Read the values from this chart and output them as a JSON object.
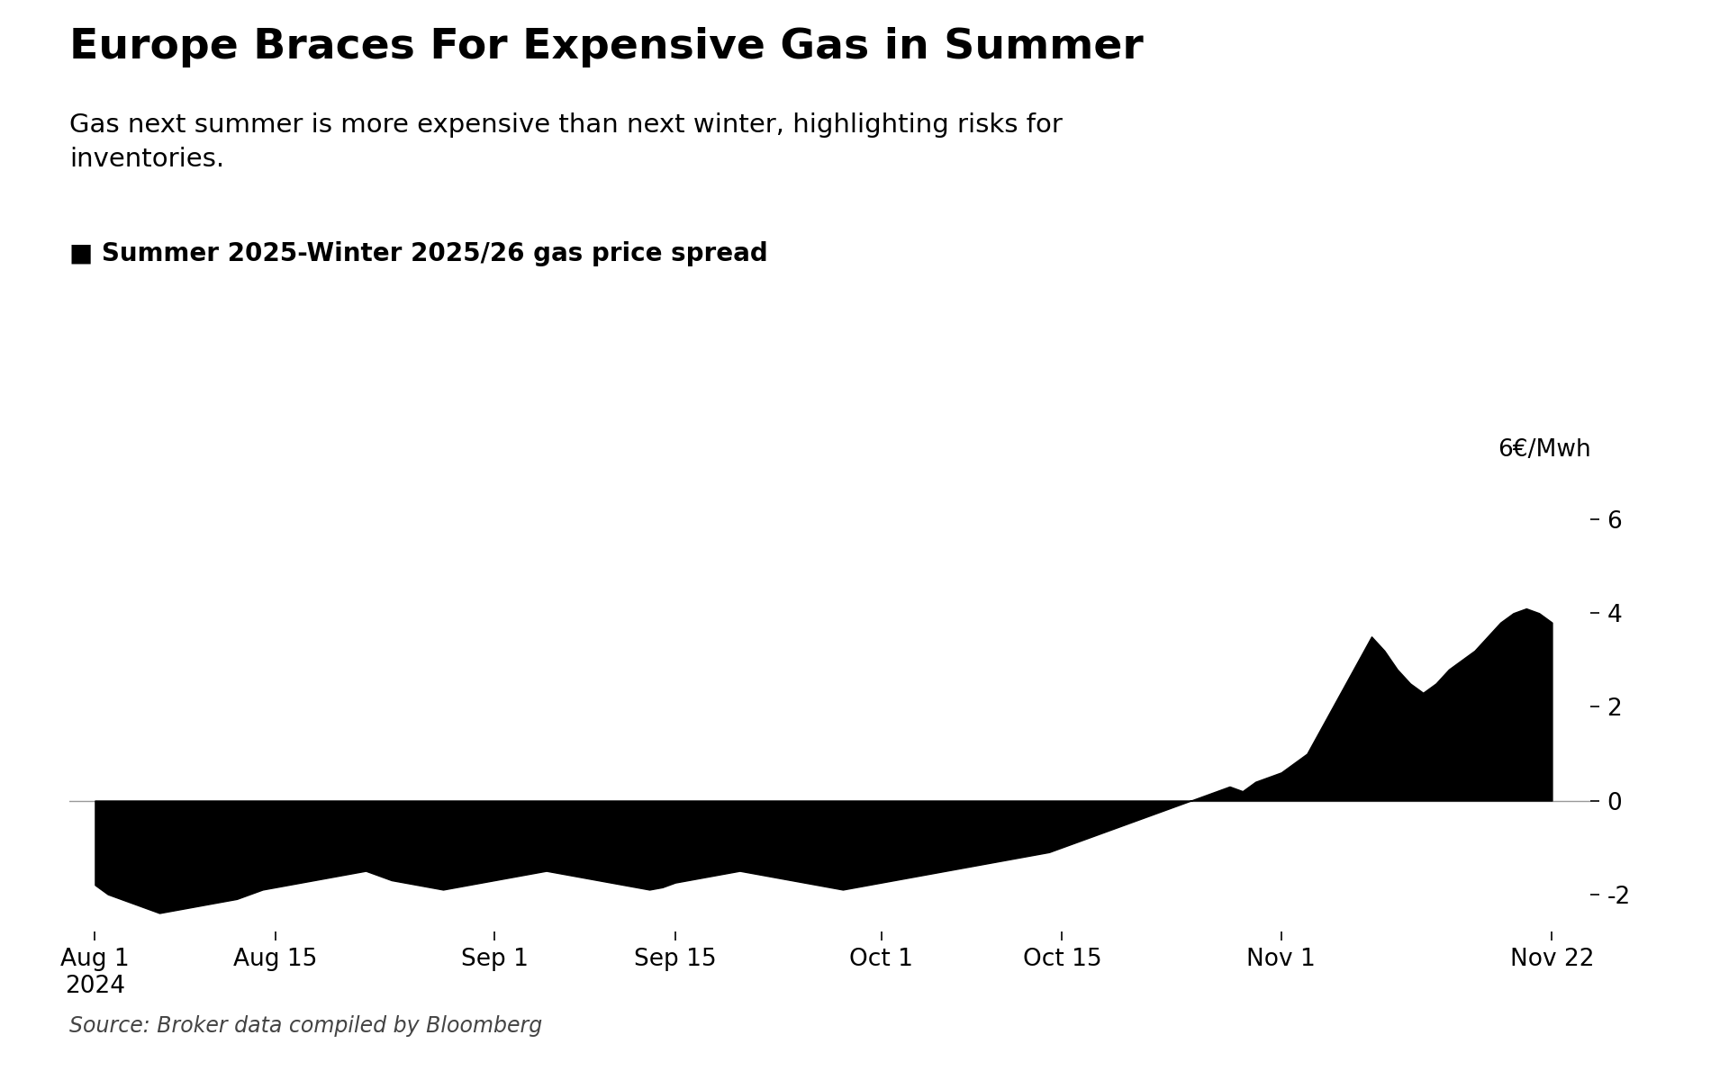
{
  "title": "Europe Braces For Expensive Gas in Summer",
  "subtitle": "Gas next summer is more expensive than next winter, highlighting risks for\ninventories.",
  "legend_label": "Summer 2025-Winter 2025/26 gas price spread",
  "ylabel": "6€/Mwh",
  "source": "Source: Broker data compiled by Bloomberg",
  "background_color": "#ffffff",
  "fill_color": "#000000",
  "yticks": [
    -2,
    0,
    2,
    4,
    6
  ],
  "ylim": [
    -2.8,
    6.8
  ],
  "xtick_labels": [
    "Aug 1\n2024",
    "Aug 15",
    "Sep 1",
    "Sep 15",
    "Oct 1",
    "Oct 15",
    "Nov 1",
    "Nov 22"
  ],
  "xtick_positions": [
    0,
    14,
    31,
    45,
    61,
    75,
    92,
    113
  ],
  "x_values": [
    0,
    1,
    2,
    3,
    4,
    5,
    6,
    7,
    8,
    9,
    10,
    11,
    12,
    13,
    14,
    15,
    16,
    17,
    18,
    19,
    20,
    21,
    22,
    23,
    24,
    25,
    26,
    27,
    28,
    29,
    30,
    31,
    32,
    33,
    34,
    35,
    36,
    37,
    38,
    39,
    40,
    41,
    42,
    43,
    44,
    45,
    46,
    47,
    48,
    49,
    50,
    51,
    52,
    53,
    54,
    55,
    56,
    57,
    58,
    59,
    60,
    61,
    62,
    63,
    64,
    65,
    66,
    67,
    68,
    69,
    70,
    71,
    72,
    73,
    74,
    75,
    76,
    77,
    78,
    79,
    80,
    81,
    82,
    83,
    84,
    85,
    86,
    87,
    88,
    89,
    90,
    91,
    92,
    93,
    94,
    95,
    96,
    97,
    98,
    99,
    100,
    101,
    102,
    103,
    104,
    105,
    106,
    107,
    108,
    109,
    110,
    111,
    112,
    113
  ],
  "y_values": [
    -1.8,
    -2.0,
    -2.1,
    -2.2,
    -2.3,
    -2.4,
    -2.35,
    -2.3,
    -2.25,
    -2.2,
    -2.15,
    -2.1,
    -2.0,
    -1.9,
    -1.85,
    -1.8,
    -1.75,
    -1.7,
    -1.65,
    -1.6,
    -1.55,
    -1.5,
    -1.6,
    -1.7,
    -1.75,
    -1.8,
    -1.85,
    -1.9,
    -1.85,
    -1.8,
    -1.75,
    -1.7,
    -1.65,
    -1.6,
    -1.55,
    -1.5,
    -1.55,
    -1.6,
    -1.65,
    -1.7,
    -1.75,
    -1.8,
    -1.85,
    -1.9,
    -1.85,
    -1.75,
    -1.7,
    -1.65,
    -1.6,
    -1.55,
    -1.5,
    -1.55,
    -1.6,
    -1.65,
    -1.7,
    -1.75,
    -1.8,
    -1.85,
    -1.9,
    -1.85,
    -1.8,
    -1.75,
    -1.7,
    -1.65,
    -1.6,
    -1.55,
    -1.5,
    -1.45,
    -1.4,
    -1.35,
    -1.3,
    -1.25,
    -1.2,
    -1.15,
    -1.1,
    -1.0,
    -0.9,
    -0.8,
    -0.7,
    -0.6,
    -0.5,
    -0.4,
    -0.3,
    -0.2,
    -0.1,
    0.0,
    0.1,
    0.2,
    0.3,
    0.2,
    0.4,
    0.5,
    0.6,
    0.8,
    1.0,
    1.5,
    2.0,
    2.5,
    3.0,
    3.5,
    3.2,
    2.8,
    2.5,
    2.3,
    2.5,
    2.8,
    3.0,
    3.2,
    3.5,
    3.8,
    4.0,
    4.1,
    4.0,
    3.8
  ]
}
